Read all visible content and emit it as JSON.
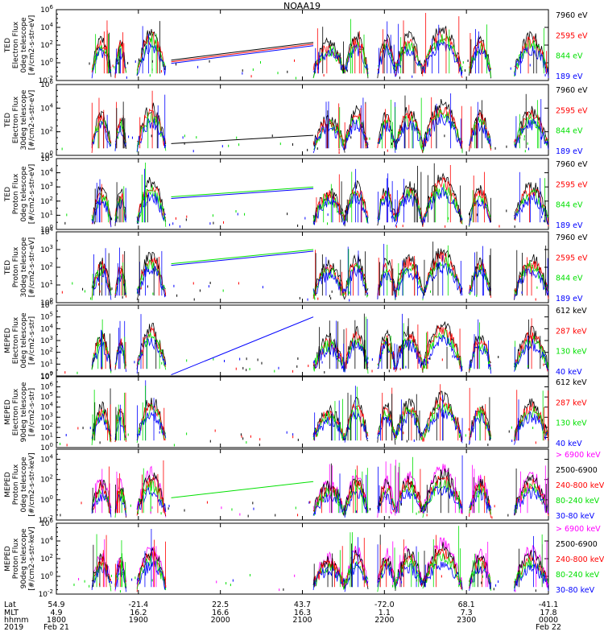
{
  "title": "NOAA19",
  "colors": {
    "black": "#000000",
    "red": "#ff0000",
    "green": "#00e000",
    "blue": "#0000ff",
    "magenta": "#ff00ff"
  },
  "chart_data": [
    {
      "type": "line",
      "ylabel": [
        "TED",
        "Electron Flux",
        "0deg telescope",
        "[#/cm2-s-str-eV]"
      ],
      "yscale": "log",
      "ylim_exp": [
        -2,
        6
      ],
      "tick_exps": [
        -2,
        0,
        2,
        4,
        6
      ],
      "series": [
        {
          "name": "7960 eV",
          "color": "black"
        },
        {
          "name": "2595 eV",
          "color": "red"
        },
        {
          "name": "844 eV",
          "color": "green"
        },
        {
          "name": "189 eV",
          "color": "blue"
        }
      ],
      "gap_line": {
        "from": [
          1924,
          0.3
        ],
        "to": [
          2108,
          2.3
        ],
        "series": [
          "black",
          "red",
          "blue"
        ]
      }
    },
    {
      "type": "line",
      "ylabel": [
        "TED",
        "Electron Flux",
        "30deg telescope",
        "[#/cm2-s-str-eV]"
      ],
      "yscale": "log",
      "ylim_exp": [
        0,
        6
      ],
      "tick_exps": [
        0,
        2,
        4,
        6
      ],
      "series": [
        {
          "name": "7960 eV",
          "color": "black"
        },
        {
          "name": "2595 eV",
          "color": "red"
        },
        {
          "name": "844 eV",
          "color": "green"
        },
        {
          "name": "189 eV",
          "color": "blue"
        }
      ],
      "gap_line": {
        "from": [
          1924,
          1.0
        ],
        "to": [
          2108,
          1.7
        ],
        "series": [
          "black"
        ]
      }
    },
    {
      "type": "line",
      "ylabel": [
        "TED",
        "Proton Flux",
        "0deg telescope",
        "[#/cm2-s-str-eV]"
      ],
      "yscale": "log",
      "ylim_exp": [
        0,
        5
      ],
      "tick_exps": [
        0,
        1,
        2,
        3,
        4,
        5
      ],
      "series": [
        {
          "name": "7960 eV",
          "color": "black"
        },
        {
          "name": "2595 eV",
          "color": "red"
        },
        {
          "name": "844 eV",
          "color": "green"
        },
        {
          "name": "189 eV",
          "color": "blue"
        }
      ],
      "gap_line": {
        "from": [
          1924,
          2.3
        ],
        "to": [
          2108,
          3.0
        ],
        "series": [
          "green",
          "blue"
        ]
      }
    },
    {
      "type": "line",
      "ylabel": [
        "TED",
        "Proton Flux",
        "30deg telescope",
        "[#/cm2-s-str-eV]"
      ],
      "yscale": "log",
      "ylim_exp": [
        0,
        4
      ],
      "tick_exps": [
        0,
        1,
        2,
        3,
        4
      ],
      "series": [
        {
          "name": "7960 eV",
          "color": "black"
        },
        {
          "name": "2595 eV",
          "color": "red"
        },
        {
          "name": "844 eV",
          "color": "green"
        },
        {
          "name": "189 eV",
          "color": "blue"
        }
      ],
      "gap_line": {
        "from": [
          1924,
          2.2
        ],
        "to": [
          2108,
          3.0
        ],
        "series": [
          "green",
          "blue"
        ]
      }
    },
    {
      "type": "line",
      "ylabel": [
        "MEPED",
        "Electron Flux",
        "0deg telescope",
        "[#/cm2-s-str]"
      ],
      "yscale": "log",
      "ylim_exp": [
        0,
        6
      ],
      "tick_exps": [
        0,
        1,
        2,
        3,
        4,
        5,
        6
      ],
      "series": [
        {
          "name": "612 keV",
          "color": "black"
        },
        {
          "name": "287 keV",
          "color": "red"
        },
        {
          "name": "130 keV",
          "color": "green"
        },
        {
          "name": "40 keV",
          "color": "blue"
        }
      ],
      "gap_line": {
        "from": [
          1924,
          0.1
        ],
        "to": [
          2108,
          5.0
        ],
        "series": [
          "blue"
        ]
      }
    },
    {
      "type": "line",
      "ylabel": [
        "MEPED",
        "Electron Flux",
        "90deg telescope",
        "[#/cm2-s-str]"
      ],
      "yscale": "log",
      "ylim_exp": [
        0,
        7
      ],
      "tick_exps": [
        0,
        1,
        2,
        3,
        4,
        5,
        6,
        7
      ],
      "series": [
        {
          "name": "612 keV",
          "color": "black"
        },
        {
          "name": "287 keV",
          "color": "red"
        },
        {
          "name": "130 keV",
          "color": "green"
        },
        {
          "name": "40 keV",
          "color": "blue"
        }
      ],
      "gap_line": null
    },
    {
      "type": "line",
      "ylabel": [
        "MEPED",
        "Proton Flux",
        "0deg telescope",
        "[#/cm2-s-str-keV]"
      ],
      "yscale": "log",
      "ylim_exp": [
        -2,
        5
      ],
      "tick_exps": [
        -2,
        0,
        2,
        4
      ],
      "series": [
        {
          "name": "> 6900 keV",
          "color": "magenta"
        },
        {
          "name": "2500-6900",
          "color": "black"
        },
        {
          "name": "240-800 keV",
          "color": "red"
        },
        {
          "name": "80-240 keV",
          "color": "green"
        },
        {
          "name": "30-80 keV",
          "color": "blue"
        }
      ],
      "gap_line": {
        "from": [
          1924,
          0.2
        ],
        "to": [
          2108,
          1.8
        ],
        "series": [
          "green"
        ]
      }
    },
    {
      "type": "line",
      "ylabel": [
        "MEPED",
        "Proton Flux",
        "90deg telescope",
        "[#/cm2-s-str-keV]"
      ],
      "yscale": "log",
      "ylim_exp": [
        -2,
        6
      ],
      "tick_exps": [
        -2,
        0,
        2,
        4,
        6
      ],
      "series": [
        {
          "name": "> 6900 keV",
          "color": "magenta"
        },
        {
          "name": "2500-6900",
          "color": "black"
        },
        {
          "name": "240-800 keV",
          "color": "red"
        },
        {
          "name": "80-240 keV",
          "color": "green"
        },
        {
          "name": "30-80 keV",
          "color": "blue"
        }
      ],
      "gap_line": null
    }
  ],
  "x_axis": {
    "xlim": [
      "1800",
      "2400"
    ],
    "row_labels": [
      "Lat",
      "MLT",
      "hhmm",
      "2019"
    ],
    "ticks": [
      {
        "hhmm": "1800",
        "lat": "54.9",
        "mlt": "4.9",
        "date": "Feb 21"
      },
      {
        "hhmm": "1900",
        "lat": "-21.4",
        "mlt": "16.2",
        "date": ""
      },
      {
        "hhmm": "2000",
        "lat": "22.5",
        "mlt": "16.6",
        "date": ""
      },
      {
        "hhmm": "2100",
        "lat": "43.7",
        "mlt": "16.3",
        "date": ""
      },
      {
        "hhmm": "2200",
        "lat": "-72.0",
        "mlt": "1.1",
        "date": ""
      },
      {
        "hhmm": "2300",
        "lat": "68.1",
        "mlt": "7.3",
        "date": ""
      },
      {
        "hhmm": "0000",
        "lat": "-41.1",
        "mlt": "17.8",
        "date": "Feb 22"
      }
    ]
  },
  "activity_intervals": [
    {
      "start": 1826,
      "end": 1840,
      "peak": 0.45
    },
    {
      "start": 1843,
      "end": 1851,
      "peak": 0.4
    },
    {
      "start": 1859,
      "end": 1920,
      "peak": 0.55
    },
    {
      "start": 2108,
      "end": 2131,
      "peak": 0.4
    },
    {
      "start": 2131,
      "end": 2148,
      "peak": 0.5
    },
    {
      "start": 2155,
      "end": 2208,
      "peak": 0.45
    },
    {
      "start": 2208,
      "end": 2228,
      "peak": 0.5
    },
    {
      "start": 2228,
      "end": 2257,
      "peak": 0.6
    },
    {
      "start": 2302,
      "end": 2318,
      "peak": 0.45
    },
    {
      "start": 2335,
      "end": 2400,
      "peak": 0.5
    }
  ]
}
